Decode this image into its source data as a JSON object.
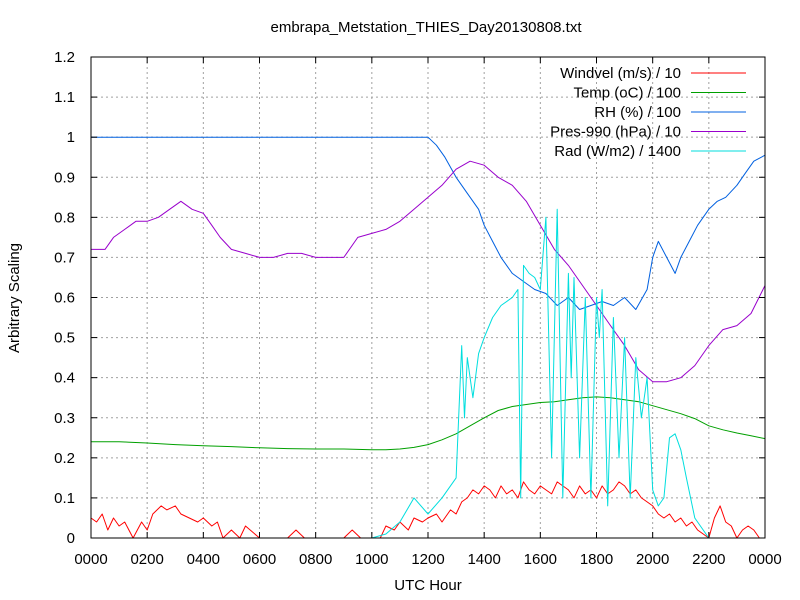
{
  "chart_data": {
    "type": "line",
    "title": "embrapa_Metstation_THIES_Day20130808.txt",
    "xlabel": "UTC Hour",
    "ylabel": "Arbitrary Scaling",
    "xlim": [
      0,
      24
    ],
    "ylim": [
      0,
      1.2
    ],
    "grid": true,
    "legend_position": "top-right",
    "x_ticks": [
      {
        "value": 0,
        "label": "0000"
      },
      {
        "value": 2,
        "label": "0200"
      },
      {
        "value": 4,
        "label": "0400"
      },
      {
        "value": 6,
        "label": "0600"
      },
      {
        "value": 8,
        "label": "0800"
      },
      {
        "value": 10,
        "label": "1000"
      },
      {
        "value": 12,
        "label": "1200"
      },
      {
        "value": 14,
        "label": "1400"
      },
      {
        "value": 16,
        "label": "1600"
      },
      {
        "value": 18,
        "label": "1800"
      },
      {
        "value": 20,
        "label": "2000"
      },
      {
        "value": 22,
        "label": "2200"
      },
      {
        "value": 24,
        "label": "0000"
      }
    ],
    "y_ticks": [
      {
        "value": 0,
        "label": "0"
      },
      {
        "value": 0.1,
        "label": "0.1"
      },
      {
        "value": 0.2,
        "label": "0.2"
      },
      {
        "value": 0.3,
        "label": "0.3"
      },
      {
        "value": 0.4,
        "label": "0.4"
      },
      {
        "value": 0.5,
        "label": "0.5"
      },
      {
        "value": 0.6,
        "label": "0.6"
      },
      {
        "value": 0.7,
        "label": "0.7"
      },
      {
        "value": 0.8,
        "label": "0.8"
      },
      {
        "value": 0.9,
        "label": "0.9"
      },
      {
        "value": 1.0,
        "label": "1"
      },
      {
        "value": 1.1,
        "label": "1.1"
      },
      {
        "value": 1.2,
        "label": "1.2"
      }
    ],
    "series": [
      {
        "name": "Windvel (m/s) / 10",
        "color": "#ff0000",
        "x": [
          0,
          0.2,
          0.4,
          0.6,
          0.8,
          1.0,
          1.2,
          1.5,
          1.8,
          2.0,
          2.2,
          2.5,
          2.7,
          3.0,
          3.2,
          3.5,
          3.8,
          4.0,
          4.3,
          4.5,
          4.7,
          5.0,
          5.3,
          5.5,
          6.0,
          6.5,
          7.0,
          7.3,
          7.6,
          8.0,
          8.5,
          9.0,
          9.3,
          9.6,
          10.0,
          10.3,
          10.5,
          10.8,
          11.0,
          11.3,
          11.5,
          11.8,
          12.0,
          12.3,
          12.5,
          12.8,
          13.0,
          13.2,
          13.4,
          13.6,
          13.8,
          14.0,
          14.2,
          14.4,
          14.6,
          14.8,
          15.0,
          15.2,
          15.4,
          15.6,
          15.8,
          16.0,
          16.2,
          16.4,
          16.6,
          16.8,
          17.0,
          17.2,
          17.4,
          17.6,
          17.8,
          18.0,
          18.2,
          18.4,
          18.6,
          18.8,
          19.0,
          19.2,
          19.4,
          19.6,
          19.8,
          20.0,
          20.2,
          20.4,
          20.6,
          20.8,
          21.0,
          21.2,
          21.4,
          21.6,
          21.8,
          22.0,
          22.2,
          22.4,
          22.6,
          22.8,
          23.0,
          23.2,
          23.4,
          23.6,
          23.8,
          24.0
        ],
        "y": [
          0.05,
          0.04,
          0.06,
          0.02,
          0.05,
          0.03,
          0.04,
          0.0,
          0.04,
          0.02,
          0.06,
          0.08,
          0.07,
          0.08,
          0.06,
          0.05,
          0.04,
          0.05,
          0.03,
          0.04,
          0.0,
          0.02,
          0.0,
          0.03,
          0.0,
          0.0,
          0.0,
          0.02,
          0.0,
          0.0,
          0.0,
          0.0,
          0.02,
          0.0,
          0.0,
          0.0,
          0.03,
          0.02,
          0.04,
          0.02,
          0.05,
          0.04,
          0.05,
          0.06,
          0.04,
          0.07,
          0.06,
          0.09,
          0.1,
          0.12,
          0.11,
          0.13,
          0.12,
          0.1,
          0.13,
          0.11,
          0.12,
          0.1,
          0.14,
          0.12,
          0.11,
          0.13,
          0.12,
          0.11,
          0.14,
          0.13,
          0.12,
          0.1,
          0.13,
          0.11,
          0.12,
          0.1,
          0.13,
          0.11,
          0.12,
          0.14,
          0.13,
          0.11,
          0.12,
          0.1,
          0.09,
          0.08,
          0.06,
          0.05,
          0.06,
          0.04,
          0.05,
          0.03,
          0.04,
          0.02,
          0.01,
          0.0,
          0.05,
          0.08,
          0.04,
          0.03,
          0.0,
          0.02,
          0.03,
          0.02,
          0.0,
          0.0
        ]
      },
      {
        "name": "Temp (oC) / 100",
        "color": "#00a000",
        "x": [
          0,
          1,
          2,
          3,
          4,
          5,
          6,
          7,
          8,
          9,
          10,
          10.5,
          11,
          11.5,
          12,
          12.5,
          13,
          13.5,
          14,
          14.5,
          15,
          15.5,
          16,
          16.5,
          17,
          17.5,
          18,
          18.5,
          19,
          19.5,
          20,
          20.5,
          21,
          21.5,
          22,
          22.5,
          23,
          23.5,
          24
        ],
        "y": [
          0.24,
          0.24,
          0.237,
          0.233,
          0.23,
          0.228,
          0.225,
          0.223,
          0.222,
          0.222,
          0.22,
          0.22,
          0.222,
          0.226,
          0.233,
          0.245,
          0.26,
          0.28,
          0.3,
          0.318,
          0.328,
          0.333,
          0.338,
          0.34,
          0.345,
          0.35,
          0.352,
          0.35,
          0.345,
          0.34,
          0.33,
          0.32,
          0.31,
          0.298,
          0.28,
          0.27,
          0.262,
          0.255,
          0.248
        ]
      },
      {
        "name": "RH (%) / 100",
        "color": "#0060e0",
        "x": [
          0,
          2,
          4,
          6,
          8,
          10,
          11,
          12,
          12.3,
          12.6,
          13.0,
          13.4,
          13.8,
          14.0,
          14.3,
          14.6,
          15.0,
          15.4,
          15.8,
          16.2,
          16.6,
          17.0,
          17.4,
          17.8,
          18.2,
          18.6,
          19.0,
          19.4,
          19.8,
          20.0,
          20.2,
          20.5,
          20.8,
          21.0,
          21.3,
          21.6,
          22.0,
          22.3,
          22.6,
          23.0,
          23.3,
          23.6,
          24.0
        ],
        "y": [
          1.0,
          1.0,
          1.0,
          1.0,
          1.0,
          1.0,
          1.0,
          1.0,
          0.98,
          0.95,
          0.9,
          0.86,
          0.82,
          0.78,
          0.74,
          0.7,
          0.66,
          0.64,
          0.62,
          0.61,
          0.58,
          0.6,
          0.57,
          0.58,
          0.59,
          0.58,
          0.6,
          0.57,
          0.62,
          0.7,
          0.74,
          0.7,
          0.66,
          0.7,
          0.74,
          0.78,
          0.82,
          0.84,
          0.85,
          0.88,
          0.91,
          0.94,
          0.955
        ]
      },
      {
        "name": "Pres-990 (hPa) / 10",
        "color": "#9900cc",
        "x": [
          0,
          0.5,
          0.8,
          1.2,
          1.6,
          2.0,
          2.4,
          2.8,
          3.2,
          3.6,
          4.0,
          4.3,
          4.6,
          5.0,
          5.5,
          6.0,
          6.5,
          7.0,
          7.5,
          8.0,
          8.5,
          9.0,
          9.5,
          10.0,
          10.5,
          11.0,
          11.5,
          12.0,
          12.5,
          13.0,
          13.5,
          14.0,
          14.5,
          15.0,
          15.5,
          16.0,
          16.5,
          17.0,
          17.5,
          18.0,
          18.5,
          19.0,
          19.5,
          20.0,
          20.5,
          21.0,
          21.5,
          22.0,
          22.5,
          23.0,
          23.5,
          24.0
        ],
        "y": [
          0.72,
          0.72,
          0.75,
          0.77,
          0.79,
          0.79,
          0.8,
          0.82,
          0.84,
          0.82,
          0.81,
          0.78,
          0.75,
          0.72,
          0.71,
          0.7,
          0.7,
          0.71,
          0.71,
          0.7,
          0.7,
          0.7,
          0.75,
          0.76,
          0.77,
          0.79,
          0.82,
          0.85,
          0.88,
          0.92,
          0.94,
          0.93,
          0.9,
          0.88,
          0.84,
          0.78,
          0.72,
          0.68,
          0.63,
          0.58,
          0.53,
          0.48,
          0.42,
          0.39,
          0.39,
          0.4,
          0.43,
          0.48,
          0.52,
          0.53,
          0.56,
          0.63
        ]
      },
      {
        "name": "Rad (W/m2) / 1400",
        "color": "#00dede",
        "x": [
          0,
          2,
          4,
          6,
          8,
          10,
          10.5,
          11.0,
          11.5,
          12.0,
          12.5,
          13.0,
          13.2,
          13.3,
          13.4,
          13.6,
          13.8,
          14.0,
          14.3,
          14.6,
          15.0,
          15.2,
          15.3,
          15.4,
          15.6,
          15.8,
          16.0,
          16.2,
          16.4,
          16.6,
          16.8,
          17.0,
          17.1,
          17.2,
          17.4,
          17.6,
          17.8,
          18.0,
          18.1,
          18.2,
          18.4,
          18.6,
          18.8,
          19.0,
          19.2,
          19.4,
          19.6,
          19.8,
          20.0,
          20.2,
          20.4,
          20.6,
          20.8,
          21.0,
          21.2,
          21.5,
          22.0,
          24.0
        ],
        "y": [
          0.0,
          0.0,
          0.0,
          0.0,
          0.0,
          0.0,
          0.01,
          0.04,
          0.1,
          0.06,
          0.1,
          0.15,
          0.48,
          0.3,
          0.45,
          0.35,
          0.46,
          0.5,
          0.55,
          0.58,
          0.6,
          0.62,
          0.1,
          0.68,
          0.66,
          0.65,
          0.62,
          0.8,
          0.2,
          0.82,
          0.1,
          0.66,
          0.4,
          0.65,
          0.2,
          0.6,
          0.1,
          0.6,
          0.5,
          0.62,
          0.08,
          0.55,
          0.2,
          0.5,
          0.1,
          0.45,
          0.3,
          0.4,
          0.12,
          0.08,
          0.1,
          0.25,
          0.26,
          0.22,
          0.15,
          0.05,
          0.0,
          0.0
        ]
      }
    ]
  }
}
